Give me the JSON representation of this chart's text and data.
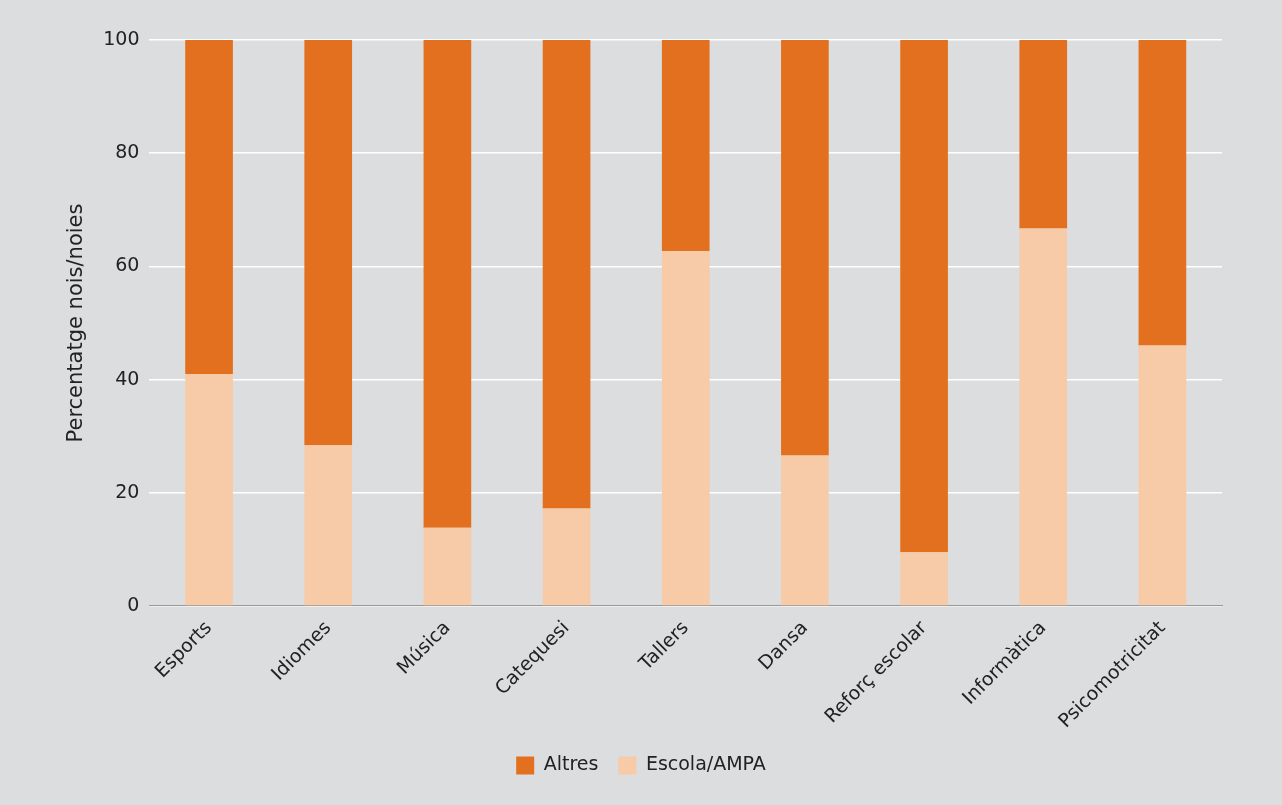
{
  "chart_data": {
    "type": "bar",
    "stacked": true,
    "ylabel": "Percentatge nois/noies",
    "categories": [
      "Esports",
      "Idiomes",
      "Música",
      "Catequesi",
      "Tallers",
      "Dansa",
      "Reforç escolar",
      "Informàtica",
      "Psicomotricitat"
    ],
    "series": [
      {
        "name": "Escola/AMPA",
        "color": "#f7cba7",
        "values": [
          41,
          28.4,
          13.8,
          17.2,
          62.7,
          26.6,
          9.5,
          66.7,
          46
        ]
      },
      {
        "name": "Altres",
        "color": "#e2701f",
        "values": [
          59,
          71.6,
          86.2,
          82.8,
          37.3,
          73.4,
          90.5,
          33.3,
          54
        ]
      }
    ],
    "ylim": [
      0,
      100
    ],
    "yticks": [
      0,
      20,
      40,
      60,
      80,
      100
    ],
    "grid": "y",
    "legend": "bottom"
  }
}
